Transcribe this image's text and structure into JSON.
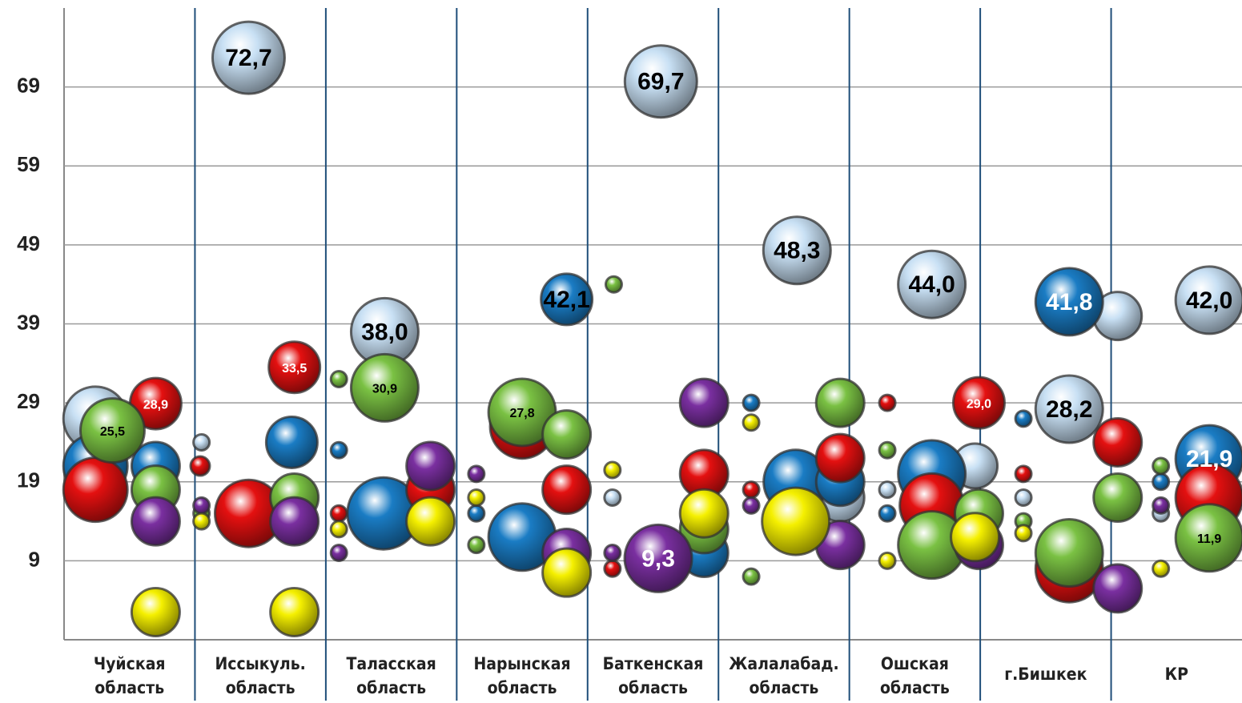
{
  "chart_data": {
    "type": "bubble",
    "categories": [
      [
        "Чуйская",
        "область"
      ],
      [
        "Иссыкуль.",
        "область"
      ],
      [
        "Таласская",
        "область"
      ],
      [
        "Нарынская",
        "область"
      ],
      [
        "Баткенская",
        "область"
      ],
      [
        "Жалалабад.",
        "область"
      ],
      [
        "Ошская",
        "область"
      ],
      [
        "г.Бишкек"
      ],
      [
        "КР"
      ]
    ],
    "xlim": [
      0,
      9
    ],
    "ylim": [
      -1,
      79
    ],
    "yticks": [
      9,
      19,
      29,
      39,
      49,
      59,
      69
    ],
    "grid": true,
    "series": [
      {
        "color": "#c8e0f4",
        "x": [
          0.24,
          1.41,
          1.05,
          2.45,
          4.56,
          4.19,
          5.6,
          5.93,
          6.63,
          6.96,
          6.29,
          8.05,
          7.68,
          7.33,
          8.75,
          8.38
        ],
        "values": [
          27,
          72.7,
          24,
          38.0,
          69.7,
          17,
          48.3,
          17,
          44.0,
          21,
          18,
          40,
          28.2,
          17,
          42.0,
          15
        ],
        "sizes": [
          40,
          45,
          10,
          42,
          45,
          10,
          42,
          30,
          42,
          28,
          10,
          30,
          42,
          10,
          42,
          10
        ],
        "value_labels": [
          null,
          "72,7",
          null,
          "38,0",
          "69,7",
          null,
          "48,3",
          null,
          "44,0",
          null,
          null,
          null,
          "28,2",
          null,
          "42,0",
          null
        ]
      },
      {
        "color": "#1a7cc4",
        "x": [
          0.24,
          0.7,
          1.74,
          2.1,
          2.44,
          3.84,
          3.15,
          3.5,
          4.89,
          5.25,
          5.59,
          5.93,
          6.29,
          6.63,
          7.68,
          7.33,
          8.75,
          8.38
        ],
        "values": [
          21,
          21,
          24,
          23,
          15,
          42.1,
          15,
          12,
          10,
          29,
          19,
          19,
          15,
          20,
          41.8,
          27,
          21.9,
          19
        ],
        "sizes": [
          40,
          30,
          32,
          10,
          45,
          32,
          10,
          42,
          30,
          10,
          40,
          30,
          10,
          42,
          42,
          10,
          42,
          10
        ],
        "value_labels": [
          null,
          null,
          null,
          null,
          null,
          "42,1",
          null,
          null,
          null,
          null,
          null,
          null,
          null,
          null,
          "41,8",
          null,
          "21,9",
          null
        ]
      },
      {
        "color": "#e41010",
        "x": [
          0.24,
          0.7,
          1.04,
          1.41,
          1.76,
          2.1,
          2.8,
          3.5,
          3.84,
          4.19,
          4.89,
          5.25,
          5.93,
          6.29,
          6.99,
          6.63,
          7.33,
          7.68,
          8.05,
          8.75
        ],
        "values": [
          18,
          28.9,
          21,
          15,
          33.5,
          15,
          18,
          26,
          18,
          8,
          20,
          18,
          22,
          29,
          29.0,
          16,
          20,
          8,
          24,
          17
        ],
        "sizes": [
          40,
          32,
          12,
          42,
          32,
          10,
          30,
          40,
          30,
          10,
          30,
          10,
          30,
          10,
          32,
          40,
          10,
          42,
          30,
          42
        ],
        "value_labels": [
          null,
          "28,9",
          null,
          null,
          "33,5",
          null,
          null,
          null,
          null,
          null,
          null,
          null,
          null,
          null,
          "29,0",
          null,
          null,
          null,
          null,
          null
        ]
      },
      {
        "color": "#7ac143",
        "x": [
          0.37,
          0.7,
          1.05,
          1.76,
          2.1,
          2.45,
          3.5,
          3.84,
          3.15,
          4.2,
          4.89,
          5.25,
          5.93,
          6.29,
          6.63,
          6.99,
          7.33,
          7.68,
          8.05,
          8.38,
          8.75
        ],
        "values": [
          25.5,
          18,
          15,
          17,
          32,
          30.9,
          27.8,
          25,
          11,
          44,
          13,
          7,
          29,
          23,
          11,
          15,
          14,
          10,
          17,
          21,
          11.9
        ],
        "sizes": [
          40,
          30,
          10,
          30,
          10,
          42,
          42,
          30,
          10,
          10,
          30,
          10,
          30,
          10,
          42,
          30,
          10,
          42,
          30,
          10,
          42
        ],
        "value_labels": [
          "25,5",
          null,
          null,
          null,
          null,
          "30,9",
          "27,8",
          null,
          null,
          null,
          null,
          null,
          null,
          null,
          null,
          null,
          null,
          null,
          null,
          null,
          "11,9"
        ]
      },
      {
        "color": "#7a2fa0",
        "x": [
          0.7,
          1.05,
          1.76,
          2.1,
          2.8,
          3.15,
          3.84,
          4.19,
          4.54,
          4.89,
          5.25,
          5.93,
          6.99,
          8.05,
          8.38
        ],
        "values": [
          14,
          16,
          14,
          10,
          21,
          20,
          10,
          10,
          9.3,
          29,
          16,
          11,
          11,
          5.5,
          16
        ],
        "sizes": [
          30,
          10,
          30,
          10,
          30,
          10,
          30,
          10,
          42,
          30,
          10,
          30,
          30,
          30,
          10
        ],
        "value_labels": [
          null,
          null,
          null,
          null,
          null,
          null,
          null,
          null,
          "9,3",
          null,
          null,
          null,
          null,
          null,
          null
        ]
      },
      {
        "color": "#f5f000",
        "x": [
          0.7,
          1.05,
          1.76,
          2.1,
          2.8,
          3.15,
          3.84,
          4.19,
          4.89,
          5.25,
          5.59,
          6.29,
          6.96,
          7.33,
          8.38
        ],
        "values": [
          2.5,
          14,
          2.5,
          13,
          14,
          17,
          7.5,
          20.5,
          15,
          26.5,
          14,
          9,
          12,
          12.5,
          8
        ],
        "sizes": [
          30,
          10,
          30,
          10,
          30,
          10,
          30,
          10,
          30,
          10,
          42,
          10,
          30,
          10,
          10
        ]
      }
    ]
  }
}
